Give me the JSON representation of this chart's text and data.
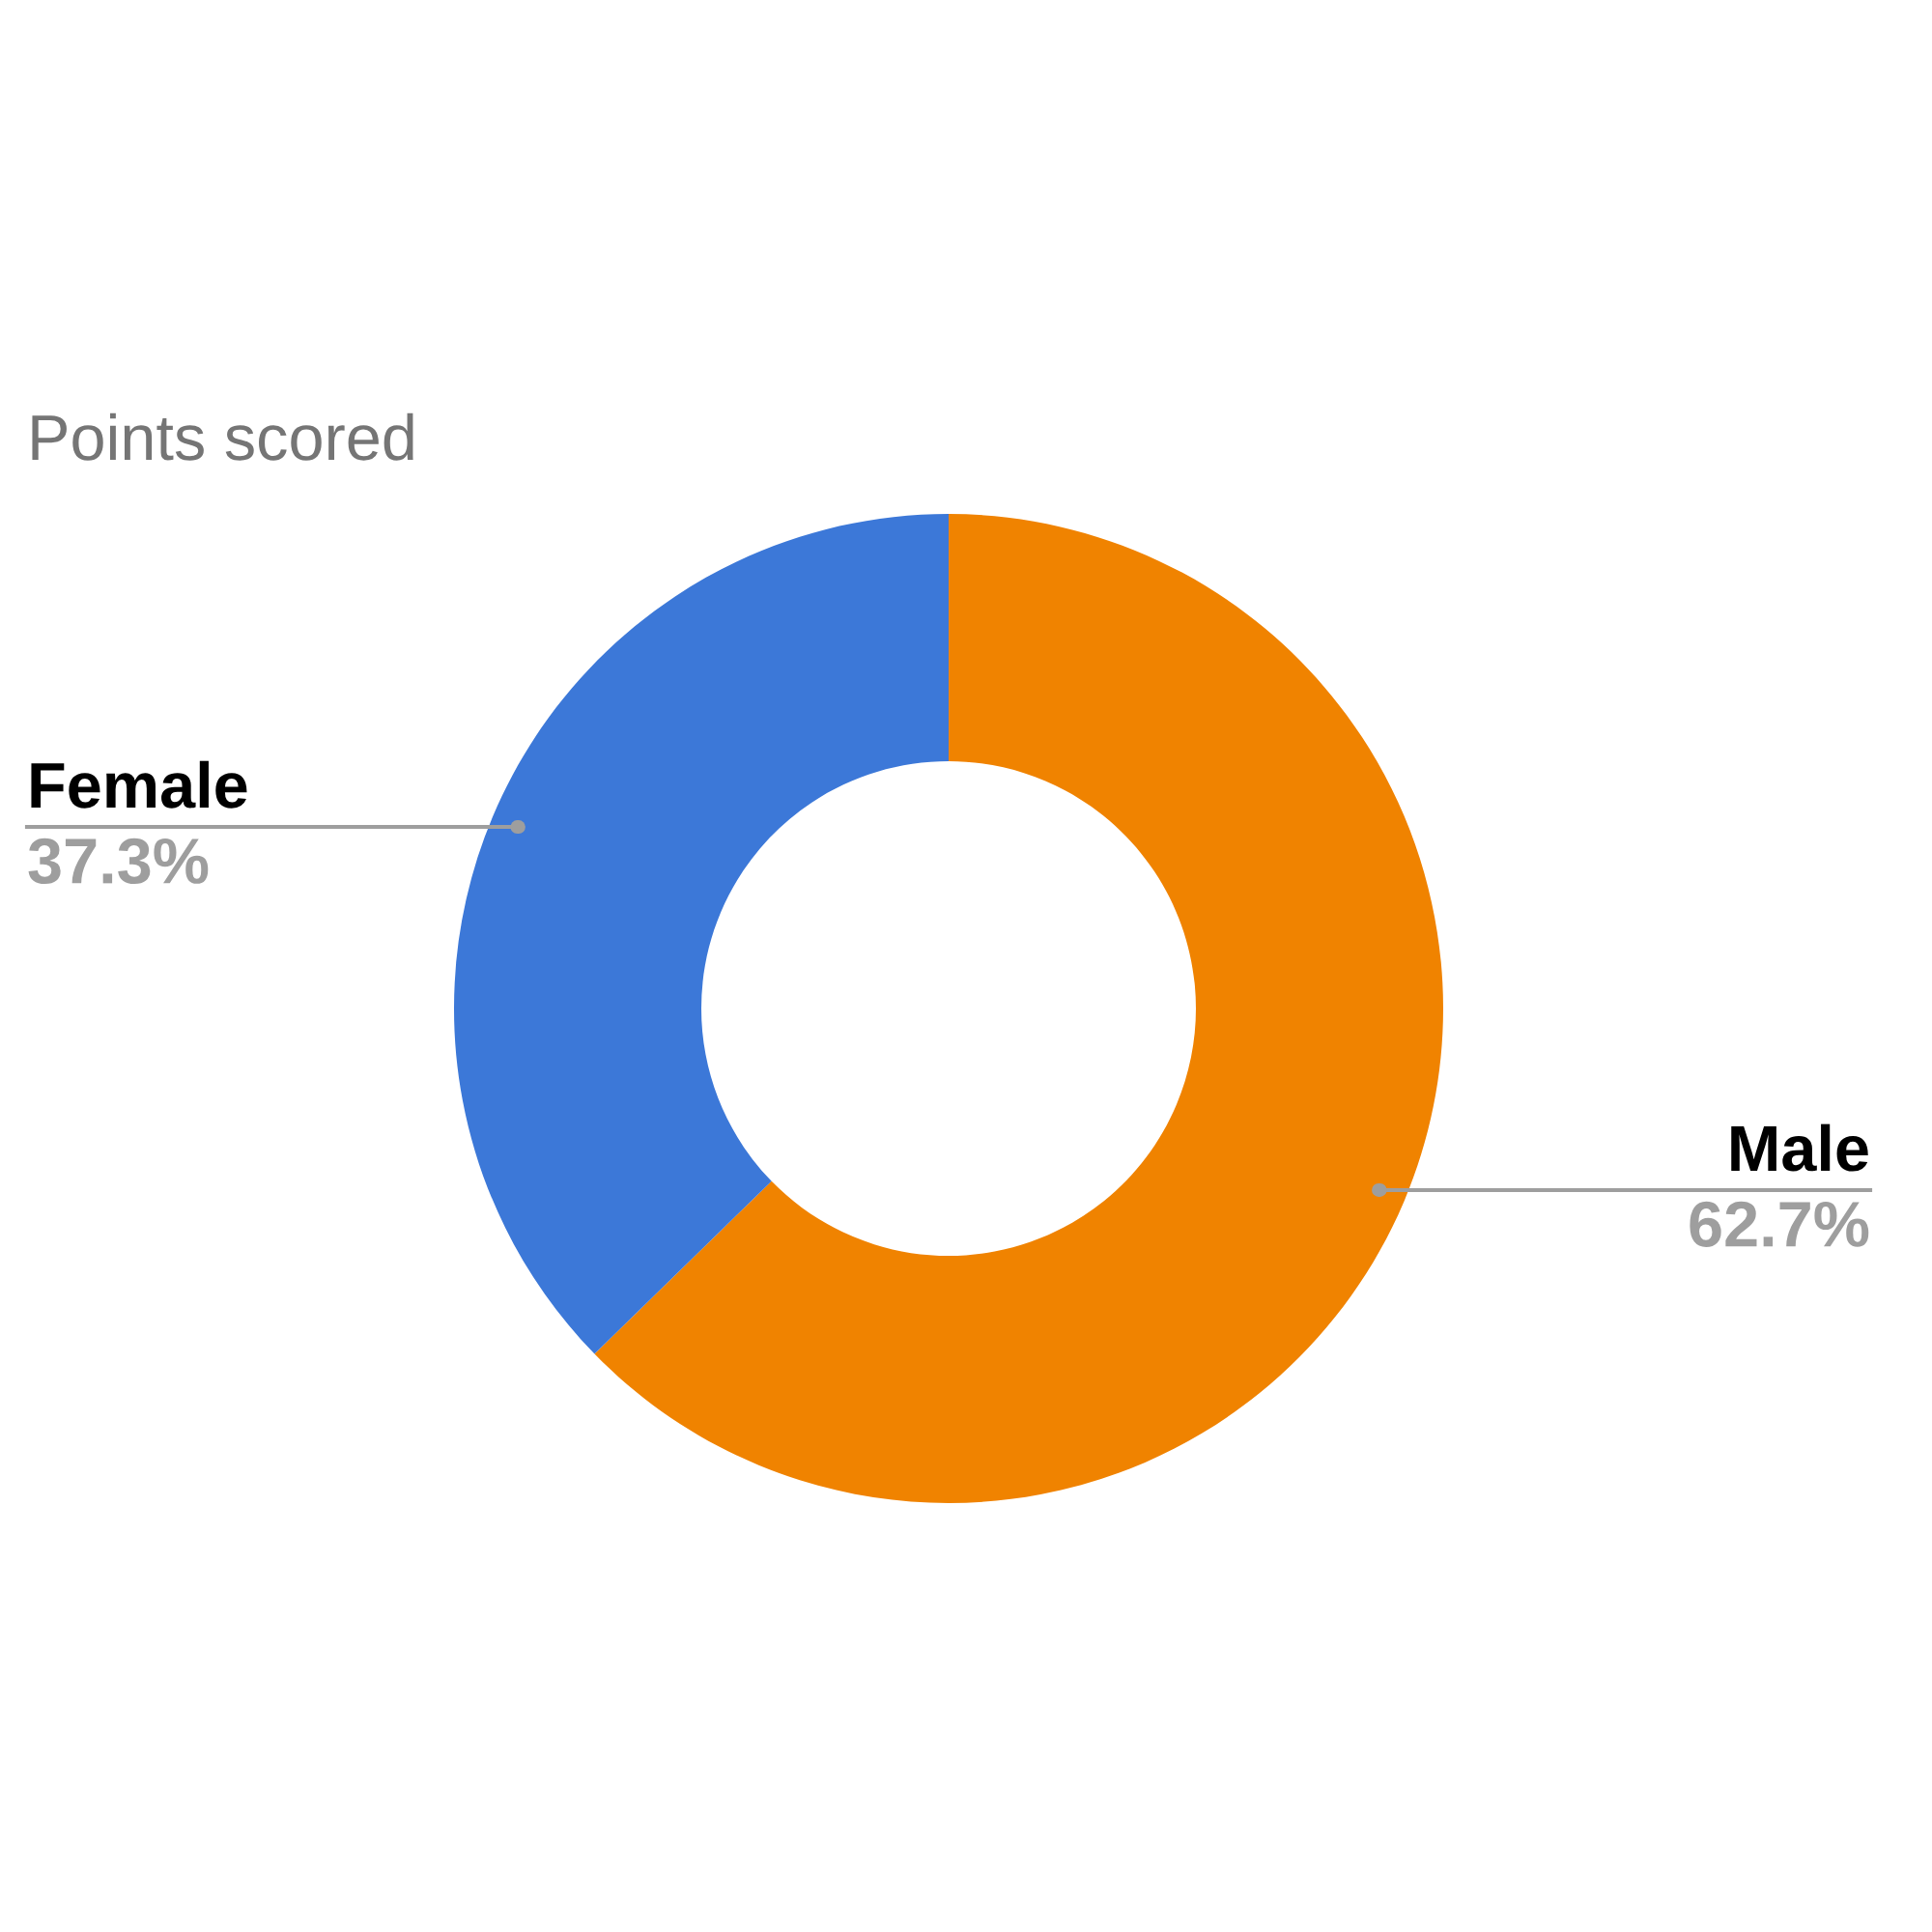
{
  "chart_data": {
    "type": "donut",
    "title": "Points scored",
    "categories": [
      "Male",
      "Female"
    ],
    "values": [
      62.7,
      37.3
    ],
    "colors": [
      "#f08300",
      "#3c78d8"
    ],
    "value_labels": [
      "62.7%",
      "37.3%"
    ]
  }
}
